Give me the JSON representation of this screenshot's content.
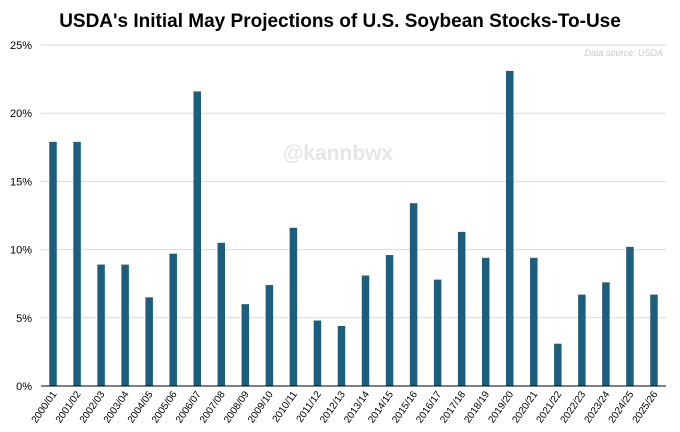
{
  "chart_data": {
    "type": "bar",
    "title": "USDA's Initial May Projections of U.S. Soybean Stocks-To-Use",
    "source_note": "Data source: USDA",
    "watermark": "@kannbwx",
    "xlabel": "",
    "ylabel": "",
    "ylim": [
      0,
      25
    ],
    "yticks": [
      "0%",
      "5%",
      "10%",
      "15%",
      "20%",
      "25%"
    ],
    "grid": true,
    "legend": "none",
    "bar_color": "#1d5e7e",
    "categories": [
      "2000/01",
      "2001/02",
      "2002/03",
      "2003/04",
      "2004/05",
      "2005/06",
      "2006/07",
      "2007/08",
      "2008/09",
      "2009/10",
      "2010/11",
      "2011/12",
      "2012/13",
      "2013/14",
      "2014/15",
      "2015/16",
      "2016/17",
      "2017/18",
      "2018/19",
      "2019/20",
      "2020/21",
      "2021/22",
      "2022/23",
      "2023/24",
      "2024/25",
      "2025/26"
    ],
    "values": [
      17.9,
      17.9,
      8.9,
      8.9,
      6.5,
      9.7,
      21.6,
      10.5,
      6.0,
      7.4,
      11.6,
      4.8,
      4.4,
      8.1,
      9.6,
      13.4,
      7.8,
      11.3,
      9.4,
      23.1,
      9.4,
      3.1,
      6.7,
      7.6,
      10.2,
      6.7
    ]
  }
}
